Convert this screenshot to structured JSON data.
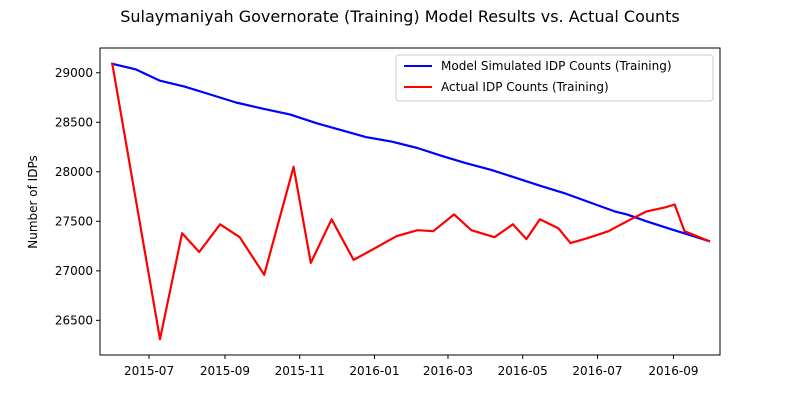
{
  "chart_data": {
    "type": "line",
    "title": "Sulaymaniyah Governorate (Training) Model Results vs. Actual Counts",
    "xlabel": "",
    "ylabel": "Number of IDPs",
    "x_type": "date",
    "xlim": [
      "2015-05-22",
      "2016-10-09"
    ],
    "ylim": [
      26150,
      29250
    ],
    "x_ticks": [
      {
        "date": "2015-07-01",
        "label": "2015-07"
      },
      {
        "date": "2015-09-01",
        "label": "2015-09"
      },
      {
        "date": "2015-11-01",
        "label": "2015-11"
      },
      {
        "date": "2016-01-01",
        "label": "2016-01"
      },
      {
        "date": "2016-03-01",
        "label": "2016-03"
      },
      {
        "date": "2016-05-01",
        "label": "2016-05"
      },
      {
        "date": "2016-07-01",
        "label": "2016-07"
      },
      {
        "date": "2016-09-01",
        "label": "2016-09"
      }
    ],
    "y_ticks": [
      26500,
      27000,
      27500,
      28000,
      28500,
      29000
    ],
    "grid": false,
    "legend": {
      "position": "top-right"
    },
    "series": [
      {
        "name": "Model Simulated IDP Counts (Training)",
        "color": "#0000ff",
        "points": [
          {
            "x": "2015-06-01",
            "y": 29090
          },
          {
            "x": "2015-06-20",
            "y": 29035
          },
          {
            "x": "2015-07-10",
            "y": 28920
          },
          {
            "x": "2015-07-30",
            "y": 28860
          },
          {
            "x": "2015-08-20",
            "y": 28780
          },
          {
            "x": "2015-09-10",
            "y": 28700
          },
          {
            "x": "2015-10-01",
            "y": 28640
          },
          {
            "x": "2015-10-24",
            "y": 28580
          },
          {
            "x": "2015-11-15",
            "y": 28490
          },
          {
            "x": "2015-12-05",
            "y": 28420
          },
          {
            "x": "2015-12-25",
            "y": 28350
          },
          {
            "x": "2016-01-15",
            "y": 28305
          },
          {
            "x": "2016-02-05",
            "y": 28240
          },
          {
            "x": "2016-02-25",
            "y": 28160
          },
          {
            "x": "2016-03-15",
            "y": 28090
          },
          {
            "x": "2016-04-05",
            "y": 28020
          },
          {
            "x": "2016-04-25",
            "y": 27940
          },
          {
            "x": "2016-05-15",
            "y": 27860
          },
          {
            "x": "2016-06-05",
            "y": 27780
          },
          {
            "x": "2016-06-25",
            "y": 27690
          },
          {
            "x": "2016-07-15",
            "y": 27600
          },
          {
            "x": "2016-07-25",
            "y": 27570
          },
          {
            "x": "2016-08-10",
            "y": 27500
          },
          {
            "x": "2016-08-30",
            "y": 27420
          },
          {
            "x": "2016-09-20",
            "y": 27340
          },
          {
            "x": "2016-09-30",
            "y": 27300
          }
        ]
      },
      {
        "name": "Actual IDP Counts (Training)",
        "color": "#ff0000",
        "points": [
          {
            "x": "2015-06-01",
            "y": 29090
          },
          {
            "x": "2015-07-10",
            "y": 26310
          },
          {
            "x": "2015-07-28",
            "y": 27380
          },
          {
            "x": "2015-08-11",
            "y": 27190
          },
          {
            "x": "2015-08-28",
            "y": 27470
          },
          {
            "x": "2015-09-13",
            "y": 27340
          },
          {
            "x": "2015-10-03",
            "y": 26960
          },
          {
            "x": "2015-10-27",
            "y": 28050
          },
          {
            "x": "2015-11-10",
            "y": 27080
          },
          {
            "x": "2015-11-27",
            "y": 27520
          },
          {
            "x": "2015-12-15",
            "y": 27110
          },
          {
            "x": "2016-01-03",
            "y": 27240
          },
          {
            "x": "2016-01-19",
            "y": 27350
          },
          {
            "x": "2016-02-05",
            "y": 27410
          },
          {
            "x": "2016-02-18",
            "y": 27400
          },
          {
            "x": "2016-03-06",
            "y": 27570
          },
          {
            "x": "2016-03-20",
            "y": 27410
          },
          {
            "x": "2016-04-08",
            "y": 27340
          },
          {
            "x": "2016-04-23",
            "y": 27470
          },
          {
            "x": "2016-05-04",
            "y": 27320
          },
          {
            "x": "2016-05-15",
            "y": 27520
          },
          {
            "x": "2016-05-30",
            "y": 27430
          },
          {
            "x": "2016-06-09",
            "y": 27280
          },
          {
            "x": "2016-06-23",
            "y": 27330
          },
          {
            "x": "2016-07-10",
            "y": 27400
          },
          {
            "x": "2016-07-25",
            "y": 27500
          },
          {
            "x": "2016-08-10",
            "y": 27600
          },
          {
            "x": "2016-08-25",
            "y": 27640
          },
          {
            "x": "2016-09-02",
            "y": 27670
          },
          {
            "x": "2016-09-10",
            "y": 27400
          },
          {
            "x": "2016-09-30",
            "y": 27300
          }
        ]
      }
    ]
  }
}
